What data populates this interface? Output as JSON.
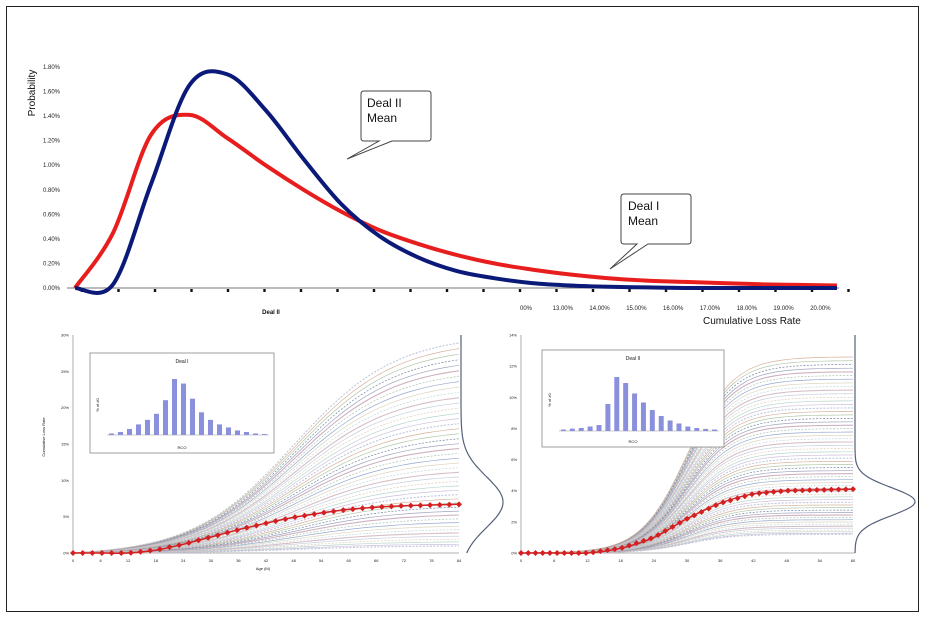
{
  "main_chart": {
    "ylabel": "Probability",
    "xlabel": "Cumulative Loss Rate",
    "sublabel": "Deal II",
    "yticks": [
      "0.00%",
      "0.20%",
      "0.40%",
      "0.60%",
      "0.80%",
      "1.00%",
      "1.20%",
      "1.40%",
      "1.60%",
      "1.80%"
    ],
    "xticks": [
      "00%",
      "13.00%",
      "14.00%",
      "15.00%",
      "16.00%",
      "17.00%",
      "18.00%",
      "19.00%",
      "20.00%"
    ],
    "callouts": [
      {
        "id": "deal2",
        "line1": "Deal II",
        "line2": "Mean"
      },
      {
        "id": "deal1",
        "line1": "Deal I",
        "line2": "Mean"
      }
    ]
  },
  "colors": {
    "deal1": "#e81e1e",
    "deal2": "#0b1a78",
    "hist_bar": "#8b90dc",
    "red_marker": "#d42020"
  },
  "left_panel": {
    "ylabel": "Cumulative Loss Rate",
    "xlabel": "Age (M)",
    "yticks": [
      "0%",
      "5%",
      "10%",
      "15%",
      "20%",
      "25%",
      "30%"
    ],
    "xticks": [
      "0",
      "6",
      "12",
      "18",
      "24",
      "30",
      "36",
      "42",
      "48",
      "54",
      "60",
      "66",
      "72",
      "78",
      "84"
    ],
    "inset_title": "Deal I",
    "inset_xlabel": "RCO",
    "inset_ylabel": "% of #0"
  },
  "right_panel": {
    "yticks": [
      "0%",
      "2%",
      "4%",
      "6%",
      "8%",
      "10%",
      "12%",
      "14%"
    ],
    "xticks": [
      "0",
      "6",
      "12",
      "18",
      "24",
      "30",
      "36",
      "42",
      "48",
      "54",
      "60"
    ],
    "inset_title": "Deal II",
    "inset_xlabel": "RCO",
    "inset_ylabel": "% of #0"
  },
  "chart_data": [
    {
      "type": "line",
      "title": "",
      "xlabel": "Cumulative Loss Rate",
      "ylabel": "Probability",
      "ylim": [
        0,
        1.8
      ],
      "x": [
        0,
        1,
        2,
        3,
        4,
        5,
        6,
        7,
        8,
        9,
        10,
        11,
        12,
        13,
        14,
        15,
        16,
        17,
        18,
        19,
        20
      ],
      "series": [
        {
          "name": "Deal I",
          "values": [
            0,
            0.45,
            1.25,
            1.41,
            1.22,
            1.0,
            0.8,
            0.62,
            0.47,
            0.36,
            0.27,
            0.2,
            0.15,
            0.11,
            0.08,
            0.06,
            0.05,
            0.04,
            0.03,
            0.025,
            0.02
          ]
        },
        {
          "name": "Deal II",
          "values": [
            0,
            0.03,
            0.85,
            1.65,
            1.74,
            1.45,
            1.05,
            0.68,
            0.42,
            0.25,
            0.14,
            0.08,
            0.04,
            0.02,
            0.01,
            0.005,
            0,
            0,
            0,
            0,
            0
          ]
        }
      ],
      "grid": false,
      "legend": "callouts"
    },
    {
      "type": "line",
      "title": "",
      "xlabel": "Age (M)",
      "ylabel": "Cumulative Loss Rate",
      "ylim": [
        0,
        30
      ],
      "xlim": [
        0,
        84
      ],
      "series": [
        {
          "name": "mean path",
          "x": [
            0,
            6,
            12,
            18,
            24,
            30,
            36,
            42,
            48,
            54,
            60,
            66,
            72,
            78,
            84
          ],
          "values": [
            0,
            0,
            0,
            0.4,
            1.2,
            2.2,
            3.2,
            4.1,
            4.9,
            5.5,
            6.0,
            6.3,
            6.5,
            6.6,
            6.7
          ]
        }
      ]
    },
    {
      "type": "bar",
      "title": "Deal I",
      "xlabel": "RCO",
      "ylabel": "% of #0",
      "categories": [
        "1",
        "2",
        "3",
        "4",
        "5",
        "6",
        "7",
        "8",
        "9",
        "10",
        "11",
        "12",
        "13",
        "14",
        "15",
        "16",
        "17",
        "18"
      ],
      "values": [
        0.5,
        1.0,
        2.0,
        3.5,
        5.0,
        7.0,
        11.5,
        18.5,
        17.0,
        12.0,
        7.5,
        5.0,
        3.5,
        2.5,
        1.5,
        1.0,
        0.5,
        0.3
      ]
    },
    {
      "type": "line",
      "title": "",
      "xlabel": "",
      "ylabel": "",
      "ylim": [
        0,
        14
      ],
      "xlim": [
        0,
        60
      ],
      "series": [
        {
          "name": "mean path",
          "x": [
            0,
            6,
            12,
            18,
            24,
            30,
            36,
            42,
            48,
            54,
            60
          ],
          "values": [
            0,
            0,
            0,
            0.3,
            1.0,
            2.2,
            3.2,
            3.8,
            4.0,
            4.05,
            4.1
          ]
        }
      ]
    },
    {
      "type": "bar",
      "title": "Deal II",
      "xlabel": "RCO",
      "ylabel": "% of #0",
      "categories": [
        "1",
        "2",
        "3",
        "4",
        "5",
        "6",
        "7",
        "8",
        "9",
        "10",
        "11",
        "12",
        "13",
        "14",
        "15",
        "16",
        "17",
        "18"
      ],
      "values": [
        0.5,
        0.8,
        1.0,
        1.5,
        2.0,
        9.0,
        18.0,
        16.0,
        12.5,
        9.5,
        7.0,
        5.0,
        3.5,
        2.5,
        1.5,
        1.0,
        0.7,
        0.5
      ]
    }
  ]
}
